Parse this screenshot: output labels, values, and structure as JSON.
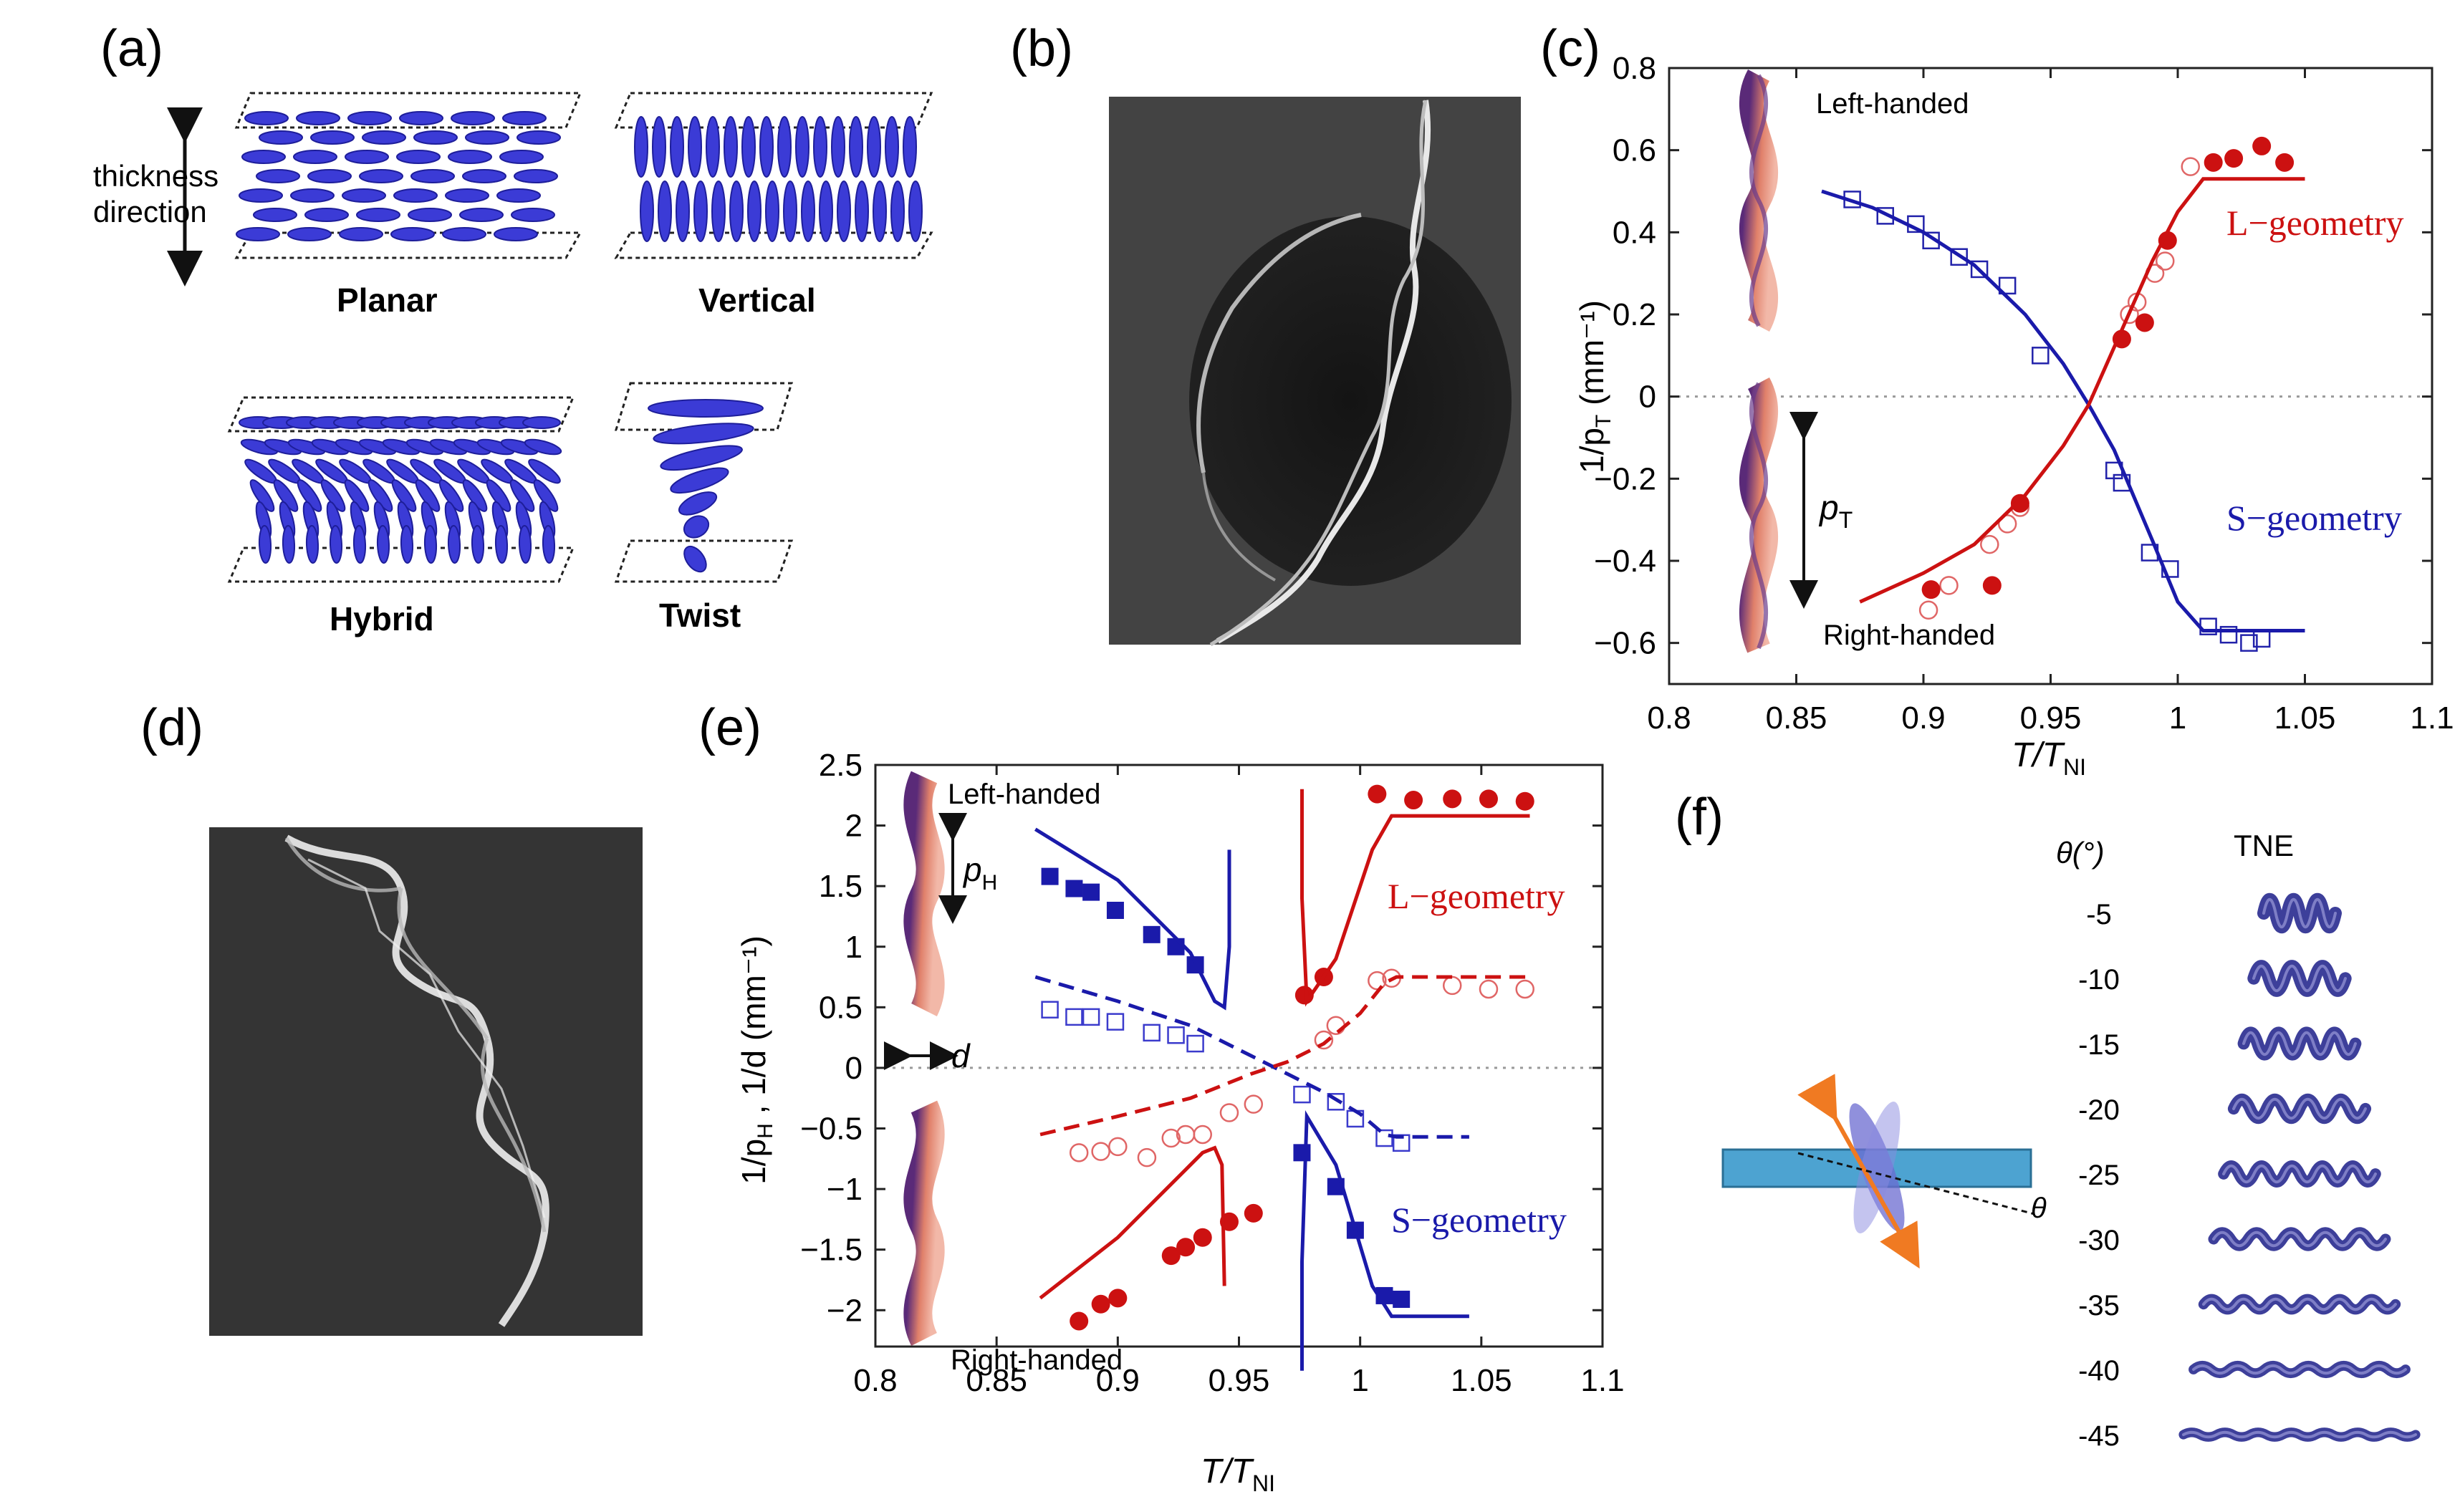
{
  "panel_labels": {
    "a": "(a)",
    "b": "(b)",
    "c": "(c)",
    "d": "(d)",
    "e": "(e)",
    "f": "(f)"
  },
  "panel_a": {
    "thickness_label_1": "thickness",
    "thickness_label_2": "direction",
    "planar": "Planar",
    "vertical": "Vertical",
    "hybrid": "Hybrid",
    "twist": "Twist",
    "ellipse_color": "#3b3bd6"
  },
  "panel_c": {
    "left_handed": "Left-handed",
    "right_handed": "Right-handed",
    "pitch_label": "p",
    "pitch_sub": "T",
    "l_geometry": "L−geometry",
    "s_geometry": "S−geometry",
    "ylabel_pre": "1/p",
    "ylabel_sub": "T",
    "ylabel_post": " (mm⁻¹)",
    "xlabel_pre": "T/T",
    "xlabel_sub": "NI",
    "xticks": [
      "0.8",
      "0.85",
      "0.9",
      "0.95",
      "1",
      "1.05",
      "1.1"
    ],
    "yticks": [
      "0.8",
      "0.6",
      "0.4",
      "0.2",
      "0",
      "−0.2",
      "−0.4",
      "−0.6"
    ]
  },
  "panel_e": {
    "left_handed": "Left-handed",
    "right_handed": "Right-handed",
    "pitch_label": "p",
    "pitch_sub": "H",
    "d_label": "d",
    "l_geometry": "L−geometry",
    "s_geometry": "S−geometry",
    "ylabel": "1/p_H , 1/d (mm⁻¹)",
    "ylabel_a": "1/p",
    "ylabel_sub": "H",
    "ylabel_b": " , 1/d (mm⁻¹)",
    "xlabel_pre": "T/T",
    "xlabel_sub": "NI",
    "xticks": [
      "0.8",
      "0.85",
      "0.9",
      "0.95",
      "1",
      "1.05",
      "1.1"
    ],
    "yticks": [
      "2.5",
      "2",
      "1.5",
      "1",
      "0.5",
      "0",
      "−0.5",
      "−1",
      "−1.5",
      "−2"
    ]
  },
  "panel_f": {
    "theta_header": "θ(°)",
    "tne_header": "TNE",
    "theta_symbol": "θ",
    "angles": [
      "-5",
      "-10",
      "-15",
      "-20",
      "-25",
      "-30",
      "-35",
      "-40",
      "-45"
    ],
    "ribbon_color": "#3d3f9a",
    "strip_color": "#4da3d1",
    "arrow_color": "#f07a22"
  },
  "chart_data": [
    {
      "type": "scatter",
      "title": "(c)",
      "xlabel": "T/T_NI",
      "ylabel": "1/p_T (mm^-1)",
      "xlim": [
        0.8,
        1.1
      ],
      "ylim": [
        -0.7,
        0.8
      ],
      "series": [
        {
          "name": "S-geometry open squares",
          "color": "#2222aa",
          "marker": "open-square",
          "x": [
            0.872,
            0.885,
            0.897,
            0.903,
            0.914,
            0.922,
            0.933,
            0.946,
            0.975,
            0.978,
            0.989,
            0.997,
            1.012,
            1.02,
            1.028,
            1.033
          ],
          "y": [
            0.48,
            0.44,
            0.42,
            0.38,
            0.34,
            0.31,
            0.27,
            0.1,
            -0.18,
            -0.21,
            -0.38,
            -0.42,
            -0.56,
            -0.58,
            -0.6,
            -0.59
          ]
        },
        {
          "name": "L-geometry open circles",
          "color": "#e06666",
          "marker": "open-circle",
          "x": [
            0.902,
            0.91,
            0.926,
            0.933,
            0.938,
            0.981,
            0.984,
            0.991,
            0.995,
            1.005
          ],
          "y": [
            -0.52,
            -0.46,
            -0.36,
            -0.31,
            -0.27,
            0.2,
            0.23,
            0.3,
            0.33,
            0.56
          ]
        },
        {
          "name": "L-geometry filled circles",
          "color": "#cc1111",
          "marker": "filled-circle",
          "x": [
            0.903,
            0.927,
            0.938,
            0.978,
            0.987,
            0.996,
            1.014,
            1.022,
            1.033,
            1.042
          ],
          "y": [
            -0.47,
            -0.46,
            -0.26,
            0.14,
            0.18,
            0.38,
            0.57,
            0.58,
            0.61,
            0.57
          ]
        },
        {
          "name": "S-geometry fit",
          "color": "#1a1aaa",
          "marker": "line",
          "x": [
            0.86,
            0.88,
            0.9,
            0.92,
            0.94,
            0.955,
            0.965,
            0.975,
            0.99,
            1.0,
            1.01,
            1.05
          ],
          "y": [
            0.5,
            0.46,
            0.4,
            0.32,
            0.2,
            0.08,
            -0.02,
            -0.13,
            -0.35,
            -0.5,
            -0.57,
            -0.57
          ]
        },
        {
          "name": "L-geometry fit",
          "color": "#cc1111",
          "marker": "line",
          "x": [
            0.875,
            0.9,
            0.92,
            0.94,
            0.955,
            0.965,
            0.975,
            0.99,
            1.0,
            1.01,
            1.05
          ],
          "y": [
            -0.5,
            -0.43,
            -0.36,
            -0.24,
            -0.12,
            -0.02,
            0.12,
            0.33,
            0.45,
            0.53,
            0.53
          ]
        }
      ]
    },
    {
      "type": "scatter",
      "title": "(e)",
      "xlabel": "T/T_NI",
      "ylabel": "1/p_H , 1/d (mm^-1)",
      "xlim": [
        0.8,
        1.1
      ],
      "ylim": [
        -2.3,
        2.5
      ],
      "series": [
        {
          "name": "S-geometry filled squares (1/p_H)",
          "color": "#1a1aaa",
          "marker": "filled-square",
          "x": [
            0.872,
            0.882,
            0.889,
            0.899,
            0.914,
            0.924,
            0.932,
            0.976,
            0.99,
            0.998,
            1.01,
            1.017
          ],
          "y": [
            1.58,
            1.48,
            1.45,
            1.3,
            1.1,
            1.0,
            0.85,
            -0.7,
            -0.98,
            -1.34,
            -1.88,
            -1.91
          ]
        },
        {
          "name": "S-geometry open squares (1/d)",
          "color": "#3b3bcc",
          "marker": "open-square",
          "x": [
            0.872,
            0.882,
            0.889,
            0.899,
            0.914,
            0.924,
            0.932,
            0.976,
            0.99,
            0.998,
            1.01,
            1.017
          ],
          "y": [
            0.48,
            0.42,
            0.42,
            0.38,
            0.29,
            0.27,
            0.2,
            -0.22,
            -0.28,
            -0.42,
            -0.58,
            -0.62
          ]
        },
        {
          "name": "L-geometry filled circles (1/p_H)",
          "color": "#cc1111",
          "marker": "filled-circle",
          "x": [
            0.884,
            0.893,
            0.9,
            0.922,
            0.928,
            0.935,
            0.946,
            0.956,
            0.977,
            0.985,
            1.007,
            1.022,
            1.038,
            1.053,
            1.068
          ],
          "y": [
            -2.09,
            -1.95,
            -1.9,
            -1.55,
            -1.48,
            -1.4,
            -1.27,
            -1.2,
            0.6,
            0.75,
            2.26,
            2.21,
            2.22,
            2.22,
            2.2
          ]
        },
        {
          "name": "L-geometry open circles (1/d)",
          "color": "#e06666",
          "marker": "open-circle",
          "x": [
            0.884,
            0.893,
            0.9,
            0.912,
            0.922,
            0.928,
            0.935,
            0.946,
            0.956,
            0.985,
            0.99,
            1.007,
            1.013,
            1.038,
            1.053,
            1.068
          ],
          "y": [
            -0.7,
            -0.69,
            -0.65,
            -0.74,
            -0.58,
            -0.55,
            -0.55,
            -0.37,
            -0.3,
            0.23,
            0.35,
            0.72,
            0.74,
            0.68,
            0.65,
            0.65
          ]
        },
        {
          "name": "S-geometry solid fit",
          "color": "#1a1aaa",
          "marker": "line",
          "x": [
            0.866,
            0.9,
            0.93,
            0.94,
            0.944,
            0.946,
            0.946
          ],
          "y": [
            1.97,
            1.55,
            0.95,
            0.55,
            0.5,
            1.0,
            1.8
          ]
        },
        {
          "name": "S-geometry solid fit (lower)",
          "color": "#1a1aaa",
          "marker": "line",
          "x": [
            0.976,
            0.976,
            0.978,
            0.99,
            1.005,
            1.013,
            1.045
          ],
          "y": [
            -2.5,
            -1.6,
            -0.4,
            -0.8,
            -1.8,
            -2.05,
            -2.05
          ]
        },
        {
          "name": "L-geometry solid fit",
          "color": "#cc1111",
          "marker": "line",
          "x": [
            0.868,
            0.9,
            0.93,
            0.935,
            0.94,
            0.943,
            0.944
          ],
          "y": [
            -1.9,
            -1.4,
            -0.8,
            -0.7,
            -0.66,
            -0.8,
            -1.8
          ]
        },
        {
          "name": "L-geometry solid fit (upper)",
          "color": "#cc1111",
          "marker": "line",
          "x": [
            0.976,
            0.976,
            0.978,
            0.99,
            1.005,
            1.013,
            1.07
          ],
          "y": [
            2.3,
            1.4,
            0.55,
            0.9,
            1.8,
            2.08,
            2.08
          ]
        },
        {
          "name": "S-geometry dashed fit",
          "color": "#1a1aaa",
          "marker": "dashed",
          "x": [
            0.866,
            0.9,
            0.93,
            0.955,
            0.97,
            0.985,
            1.0,
            1.01,
            1.015,
            1.045
          ],
          "y": [
            0.75,
            0.55,
            0.35,
            0.1,
            -0.05,
            -0.2,
            -0.38,
            -0.55,
            -0.57,
            -0.57
          ]
        },
        {
          "name": "L-geometry dashed fit",
          "color": "#cc1111",
          "marker": "dashed",
          "x": [
            0.868,
            0.9,
            0.93,
            0.955,
            0.97,
            0.985,
            1.0,
            1.01,
            1.015,
            1.07
          ],
          "y": [
            -0.55,
            -0.4,
            -0.25,
            -0.05,
            0.05,
            0.2,
            0.45,
            0.7,
            0.75,
            0.75
          ]
        }
      ]
    }
  ]
}
